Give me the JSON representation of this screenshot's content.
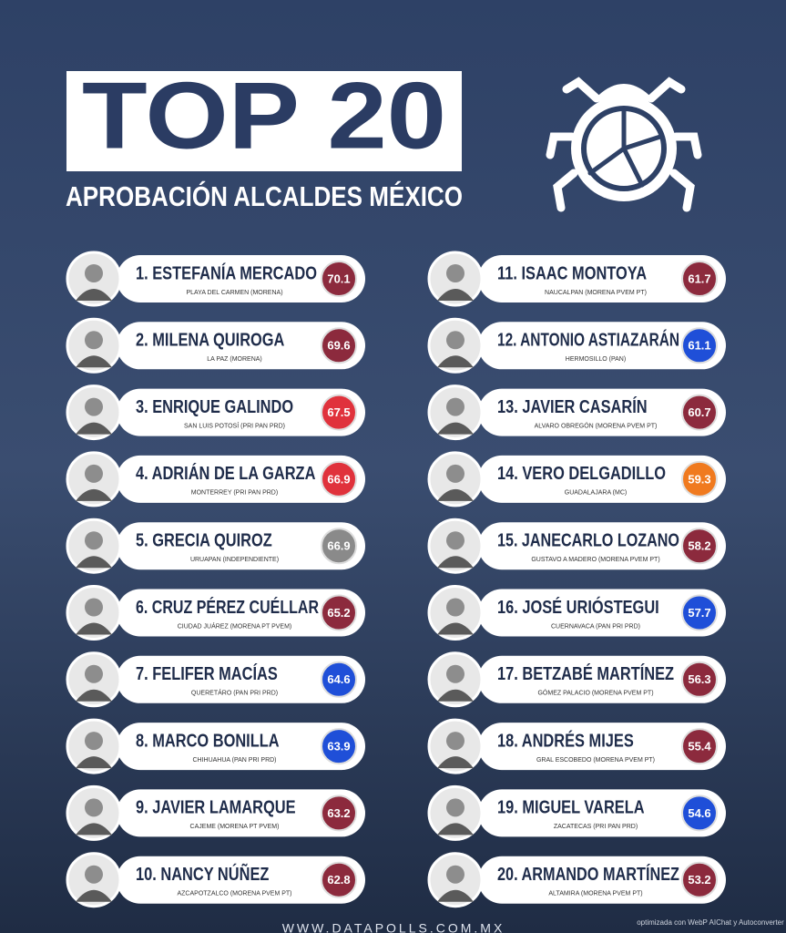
{
  "header": {
    "title": "TOP 20",
    "subtitle": "APROBACIÓN ALCALDES MÉXICO"
  },
  "entries": [
    {
      "name": "1. ESTEFANÍA MERCADO",
      "location": "PLAYA DEL CARMEN (MORENA)",
      "score": 70.1,
      "color": "#8c2a3d"
    },
    {
      "name": "2. MILENA QUIROGA",
      "location": "LA PAZ (MORENA)",
      "score": 69.6,
      "color": "#8c2a3d"
    },
    {
      "name": "3. ENRIQUE GALINDO",
      "location": "SAN LUIS POTOSÍ (PRI PAN PRD)",
      "score": 67.5,
      "color": "#e0323c"
    },
    {
      "name": "4. ADRIÁN DE LA GARZA",
      "location": "MONTERREY (PRI PAN PRD)",
      "score": 66.9,
      "color": "#e0323c"
    },
    {
      "name": "5. GRECIA QUIROZ",
      "location": "URUAPAN (INDEPENDIENTE)",
      "score": 66.9,
      "color": "#8a8a8a"
    },
    {
      "name": "6. CRUZ PÉREZ CUÉLLAR",
      "location": "CIUDAD JUÁREZ (MORENA PT PVEM)",
      "score": 65.2,
      "color": "#8c2a3d"
    },
    {
      "name": "7. FELIFER MACÍAS",
      "location": "QUERETÁRO (PAN PRI PRD)",
      "score": 64.6,
      "color": "#1f4fd8"
    },
    {
      "name": "8. MARCO BONILLA",
      "location": "CHIHUAHUA (PAN PRI PRD)",
      "score": 63.9,
      "color": "#1f4fd8"
    },
    {
      "name": "9. JAVIER LAMARQUE",
      "location": "CAJEME (MORENA PT PVEM)",
      "score": 63.2,
      "color": "#8c2a3d"
    },
    {
      "name": "10. NANCY NÚÑEZ",
      "location": "AZCAPOTZALCO (MORENA PVEM PT)",
      "score": 62.8,
      "color": "#8c2a3d"
    },
    {
      "name": "11. ISAAC MONTOYA",
      "location": "NAUCALPAN (MORENA PVEM PT)",
      "score": 61.7,
      "color": "#8c2a3d"
    },
    {
      "name": "12. ANTONIO ASTIAZARÁN",
      "location": "HERMOSILLO (PAN)",
      "score": 61.1,
      "color": "#1f4fd8"
    },
    {
      "name": "13. JAVIER CASARÍN",
      "location": "ALVARO OBREGÓN (MORENA PVEM PT)",
      "score": 60.7,
      "color": "#8c2a3d"
    },
    {
      "name": "14. VERO DELGADILLO",
      "location": "GUADALAJARA (MC)",
      "score": 59.3,
      "color": "#f07a1f"
    },
    {
      "name": "15. JANECARLO LOZANO",
      "location": "GUSTAVO A MADERO (MORENA PVEM PT)",
      "score": 58.2,
      "color": "#8c2a3d"
    },
    {
      "name": "16. JOSÉ URIÓSTEGUI",
      "location": "CUERNAVACA (PAN PRI PRD)",
      "score": 57.7,
      "color": "#1f4fd8"
    },
    {
      "name": "17. BETZABÉ MARTÍNEZ",
      "location": "GÓMEZ PALACIO (MORENA PVEM PT)",
      "score": 56.3,
      "color": "#8c2a3d"
    },
    {
      "name": "18. ANDRÉS MIJES",
      "location": "GRAL ESCOBEDO (MORENA PVEM PT)",
      "score": 55.4,
      "color": "#8c2a3d"
    },
    {
      "name": "19. MIGUEL VARELA",
      "location": "ZACATECAS (PRI PAN PRD)",
      "score": 54.6,
      "color": "#1f4fd8"
    },
    {
      "name": "20. ARMANDO MARTÍNEZ",
      "location": "ALTAMIRA (MORENA PVEM PT)",
      "score": 53.2,
      "color": "#8c2a3d"
    }
  ],
  "footer": {
    "url": "WWW.DATAPOLLS.COM.MX",
    "watermark": "optimizada con WebP AIChat y Autoconverter"
  }
}
